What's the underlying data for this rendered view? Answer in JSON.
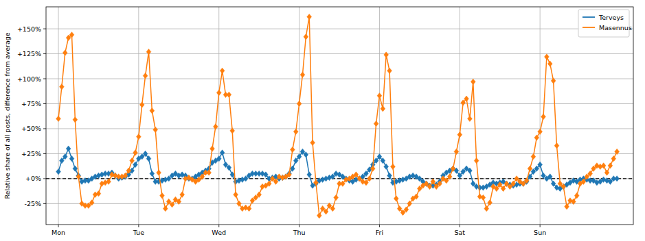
{
  "chart_data": {
    "type": "line",
    "y_label": "Relative share of all posts, difference from average",
    "categories": [
      "Mon",
      null,
      null,
      null,
      null,
      null,
      null,
      null,
      null,
      null,
      null,
      null,
      null,
      null,
      null,
      null,
      null,
      null,
      null,
      null,
      null,
      null,
      null,
      null,
      "Tue",
      null,
      null,
      null,
      null,
      null,
      null,
      null,
      null,
      null,
      null,
      null,
      null,
      null,
      null,
      null,
      null,
      null,
      null,
      null,
      null,
      null,
      null,
      null,
      "Wed",
      null,
      null,
      null,
      null,
      null,
      null,
      null,
      null,
      null,
      null,
      null,
      null,
      null,
      null,
      null,
      null,
      null,
      null,
      null,
      null,
      null,
      null,
      null,
      "Thu",
      null,
      null,
      null,
      null,
      null,
      null,
      null,
      null,
      null,
      null,
      null,
      null,
      null,
      null,
      null,
      null,
      null,
      null,
      null,
      null,
      null,
      null,
      null,
      "Fri",
      null,
      null,
      null,
      null,
      null,
      null,
      null,
      null,
      null,
      null,
      null,
      null,
      null,
      null,
      null,
      null,
      null,
      null,
      null,
      null,
      null,
      null,
      null,
      "Sat",
      null,
      null,
      null,
      null,
      null,
      null,
      null,
      null,
      null,
      null,
      null,
      null,
      null,
      null,
      null,
      null,
      null,
      null,
      null,
      null,
      null,
      null,
      null,
      "Sun",
      null,
      null,
      null,
      null,
      null,
      null,
      null,
      null,
      null,
      null,
      null,
      null,
      null,
      null,
      null,
      null,
      null,
      null,
      null,
      null,
      null,
      null,
      null
    ],
    "series": [
      {
        "name": "Terveys",
        "color": "#1f77b4",
        "marker": "diamond",
        "values": [
          7,
          18,
          22,
          30,
          20,
          10,
          3,
          -3,
          -2,
          -2,
          0,
          2,
          3,
          4,
          5,
          5,
          6,
          3,
          0,
          1,
          2,
          4,
          8,
          14,
          20,
          22,
          25,
          20,
          5,
          -3,
          -3,
          -2,
          -1,
          0,
          3,
          5,
          3,
          4,
          3,
          0,
          0,
          2,
          4,
          6,
          8,
          10,
          16,
          18,
          20,
          26,
          14,
          11,
          4,
          -3,
          -2,
          -1,
          0,
          3,
          5,
          5,
          5,
          5,
          4,
          0,
          1,
          2,
          0,
          1,
          2,
          5,
          10,
          18,
          22,
          27,
          24,
          4,
          -7,
          -5,
          -2,
          -1,
          0,
          1,
          2,
          5,
          4,
          2,
          0,
          -2,
          -3,
          -1,
          0,
          2,
          5,
          9,
          14,
          18,
          22,
          18,
          12,
          3,
          -4,
          -3,
          -2,
          -1,
          0,
          2,
          3,
          2,
          0,
          -3,
          -5,
          -7,
          -7,
          -6,
          -3,
          3,
          6,
          8,
          10,
          8,
          3,
          7,
          10,
          8,
          -5,
          -8,
          -9,
          -9,
          -8,
          -6,
          -4,
          -5,
          -4,
          -3,
          -5,
          -6,
          -7,
          -6,
          -5,
          -5,
          -3,
          2,
          7,
          10,
          14,
          3,
          0,
          2,
          -5,
          -9,
          -10,
          -8,
          -6,
          -4,
          -2,
          -3,
          -1,
          0,
          -1,
          -2,
          -2,
          -4,
          -3,
          -1,
          -2,
          -3,
          0,
          0
        ]
      },
      {
        "name": "Masennus",
        "color": "#ff7f0e",
        "marker": "diamond",
        "values": [
          60,
          92,
          126,
          141,
          144,
          59,
          2,
          -25,
          -27,
          -27,
          -24,
          -16,
          -15,
          -5,
          -4,
          -3,
          4,
          3,
          2,
          2,
          3,
          8,
          18,
          26,
          42,
          74,
          103,
          127,
          68,
          49,
          6,
          -17,
          -30,
          -23,
          -26,
          -21,
          -23,
          -16,
          0,
          1,
          -1,
          -3,
          -1,
          2,
          6,
          6,
          30,
          52,
          86,
          108,
          84,
          84,
          48,
          -16,
          -25,
          -30,
          -29,
          -30,
          -22,
          -19,
          -16,
          -8,
          -7,
          -5,
          0,
          -3,
          2,
          1,
          2,
          4,
          29,
          47,
          75,
          104,
          142,
          162,
          36,
          -4,
          -37,
          -30,
          -33,
          -27,
          -30,
          -19,
          -5,
          -5,
          -1,
          0,
          2,
          4,
          0,
          -3,
          -4,
          0,
          10,
          55,
          83,
          70,
          124,
          108,
          12,
          -20,
          -30,
          -34,
          -31,
          -25,
          -20,
          -18,
          -10,
          -7,
          -5,
          -8,
          -3,
          -8,
          -5,
          0,
          -2,
          2,
          10,
          27,
          44,
          76,
          80,
          60,
          97,
          18,
          -18,
          -19,
          -30,
          -24,
          -8,
          -10,
          -6,
          -10,
          -5,
          -8,
          -5,
          0,
          -3,
          -5,
          -2,
          10,
          22,
          41,
          47,
          62,
          122,
          115,
          98,
          33,
          -5,
          -8,
          -28,
          -22,
          -23,
          -17,
          -5,
          -3,
          2,
          5,
          10,
          13,
          12,
          13,
          6,
          13,
          20,
          27
        ]
      }
    ],
    "xlim": [
      -3.7,
      171.9
    ],
    "ylim": [
      -46,
      172
    ],
    "yticks": [
      {
        "value": -25,
        "label": "-25%"
      },
      {
        "value": 0,
        "label": "+0%"
      },
      {
        "value": 25,
        "label": "+25%"
      },
      {
        "value": 50,
        "label": "+50%"
      },
      {
        "value": 75,
        "label": "+75%"
      },
      {
        "value": 100,
        "label": "+100%"
      },
      {
        "value": 125,
        "label": "+125%"
      },
      {
        "value": 150,
        "label": "+150%"
      }
    ],
    "baseline": 0,
    "grid": true,
    "legend": "upper right"
  }
}
